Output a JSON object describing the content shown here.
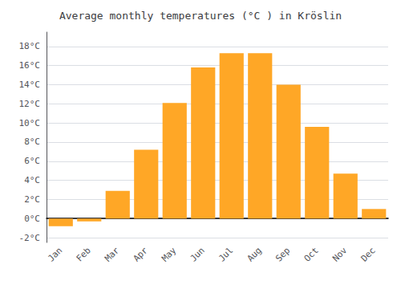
{
  "chart_data": {
    "type": "bar",
    "title": "Average monthly temperatures (°C ) in Kröslin",
    "categories": [
      "Jan",
      "Feb",
      "Mar",
      "Apr",
      "May",
      "Jun",
      "Jul",
      "Aug",
      "Sep",
      "Oct",
      "Nov",
      "Dec"
    ],
    "values": [
      -0.8,
      -0.3,
      2.9,
      7.2,
      12.1,
      15.8,
      17.3,
      17.3,
      14.0,
      9.6,
      4.7,
      1.0
    ],
    "color": "#FFA726",
    "ylim": [
      -2.5,
      19.5
    ],
    "yticks": [
      {
        "value": -2,
        "label": "-2°C"
      },
      {
        "value": 0,
        "label": "0°C"
      },
      {
        "value": 2,
        "label": "2°C"
      },
      {
        "value": 4,
        "label": "4°C"
      },
      {
        "value": 6,
        "label": "6°C"
      },
      {
        "value": 8,
        "label": "8°C"
      },
      {
        "value": 10,
        "label": "10°C"
      },
      {
        "value": 12,
        "label": "12°C"
      },
      {
        "value": 14,
        "label": "14°C"
      },
      {
        "value": 16,
        "label": "16°C"
      },
      {
        "value": 18,
        "label": "18°C"
      }
    ],
    "grid": true
  }
}
